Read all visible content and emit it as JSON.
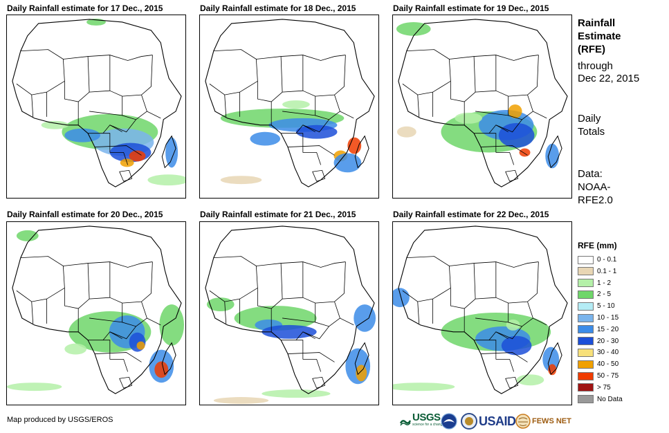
{
  "panels": [
    {
      "title": "Daily Rainfall estimate for 17 Dec., 2015"
    },
    {
      "title": "Daily Rainfall estimate for 18 Dec., 2015"
    },
    {
      "title": "Daily Rainfall estimate for 19 Dec., 2015"
    },
    {
      "title": "Daily Rainfall estimate for 20 Dec., 2015"
    },
    {
      "title": "Daily Rainfall estimate for 21 Dec., 2015"
    },
    {
      "title": "Daily Rainfall estimate for 22 Dec., 2015"
    }
  ],
  "side": {
    "title_line1": "Rainfall",
    "title_line2": "Estimate",
    "title_line3": "(RFE)",
    "through": "through",
    "date": "Dec 22, 2015",
    "daily1": "Daily",
    "daily2": "Totals",
    "data1": "Data:",
    "data2": "NOAA-",
    "data3": "RFE2.0"
  },
  "legend": {
    "title": "RFE (mm)",
    "items": [
      {
        "label": "0 - 0.1",
        "color": "#ffffff"
      },
      {
        "label": "0.1 - 1",
        "color": "#e8d6b4"
      },
      {
        "label": "1 - 2",
        "color": "#b4f0a8"
      },
      {
        "label": "2 - 5",
        "color": "#6fd66a"
      },
      {
        "label": "5 - 10",
        "color": "#b4ecf5"
      },
      {
        "label": "10 - 15",
        "color": "#7ab4ec"
      },
      {
        "label": "15 - 20",
        "color": "#3c8ce8"
      },
      {
        "label": "20 - 30",
        "color": "#1c4fd8"
      },
      {
        "label": "30 - 40",
        "color": "#f7e07a"
      },
      {
        "label": "40 - 50",
        "color": "#f0a000"
      },
      {
        "label": "50 - 75",
        "color": "#f03c00"
      },
      {
        "label": "> 75",
        "color": "#a01414"
      },
      {
        "label": "No Data",
        "color": "#999999"
      }
    ]
  },
  "credit": "Map produced by USGS/EROS",
  "logos": {
    "usgs": "USGS",
    "usgs_tag": "science for a changing world",
    "usaid": "USAID",
    "fews": "FEWS NET"
  }
}
